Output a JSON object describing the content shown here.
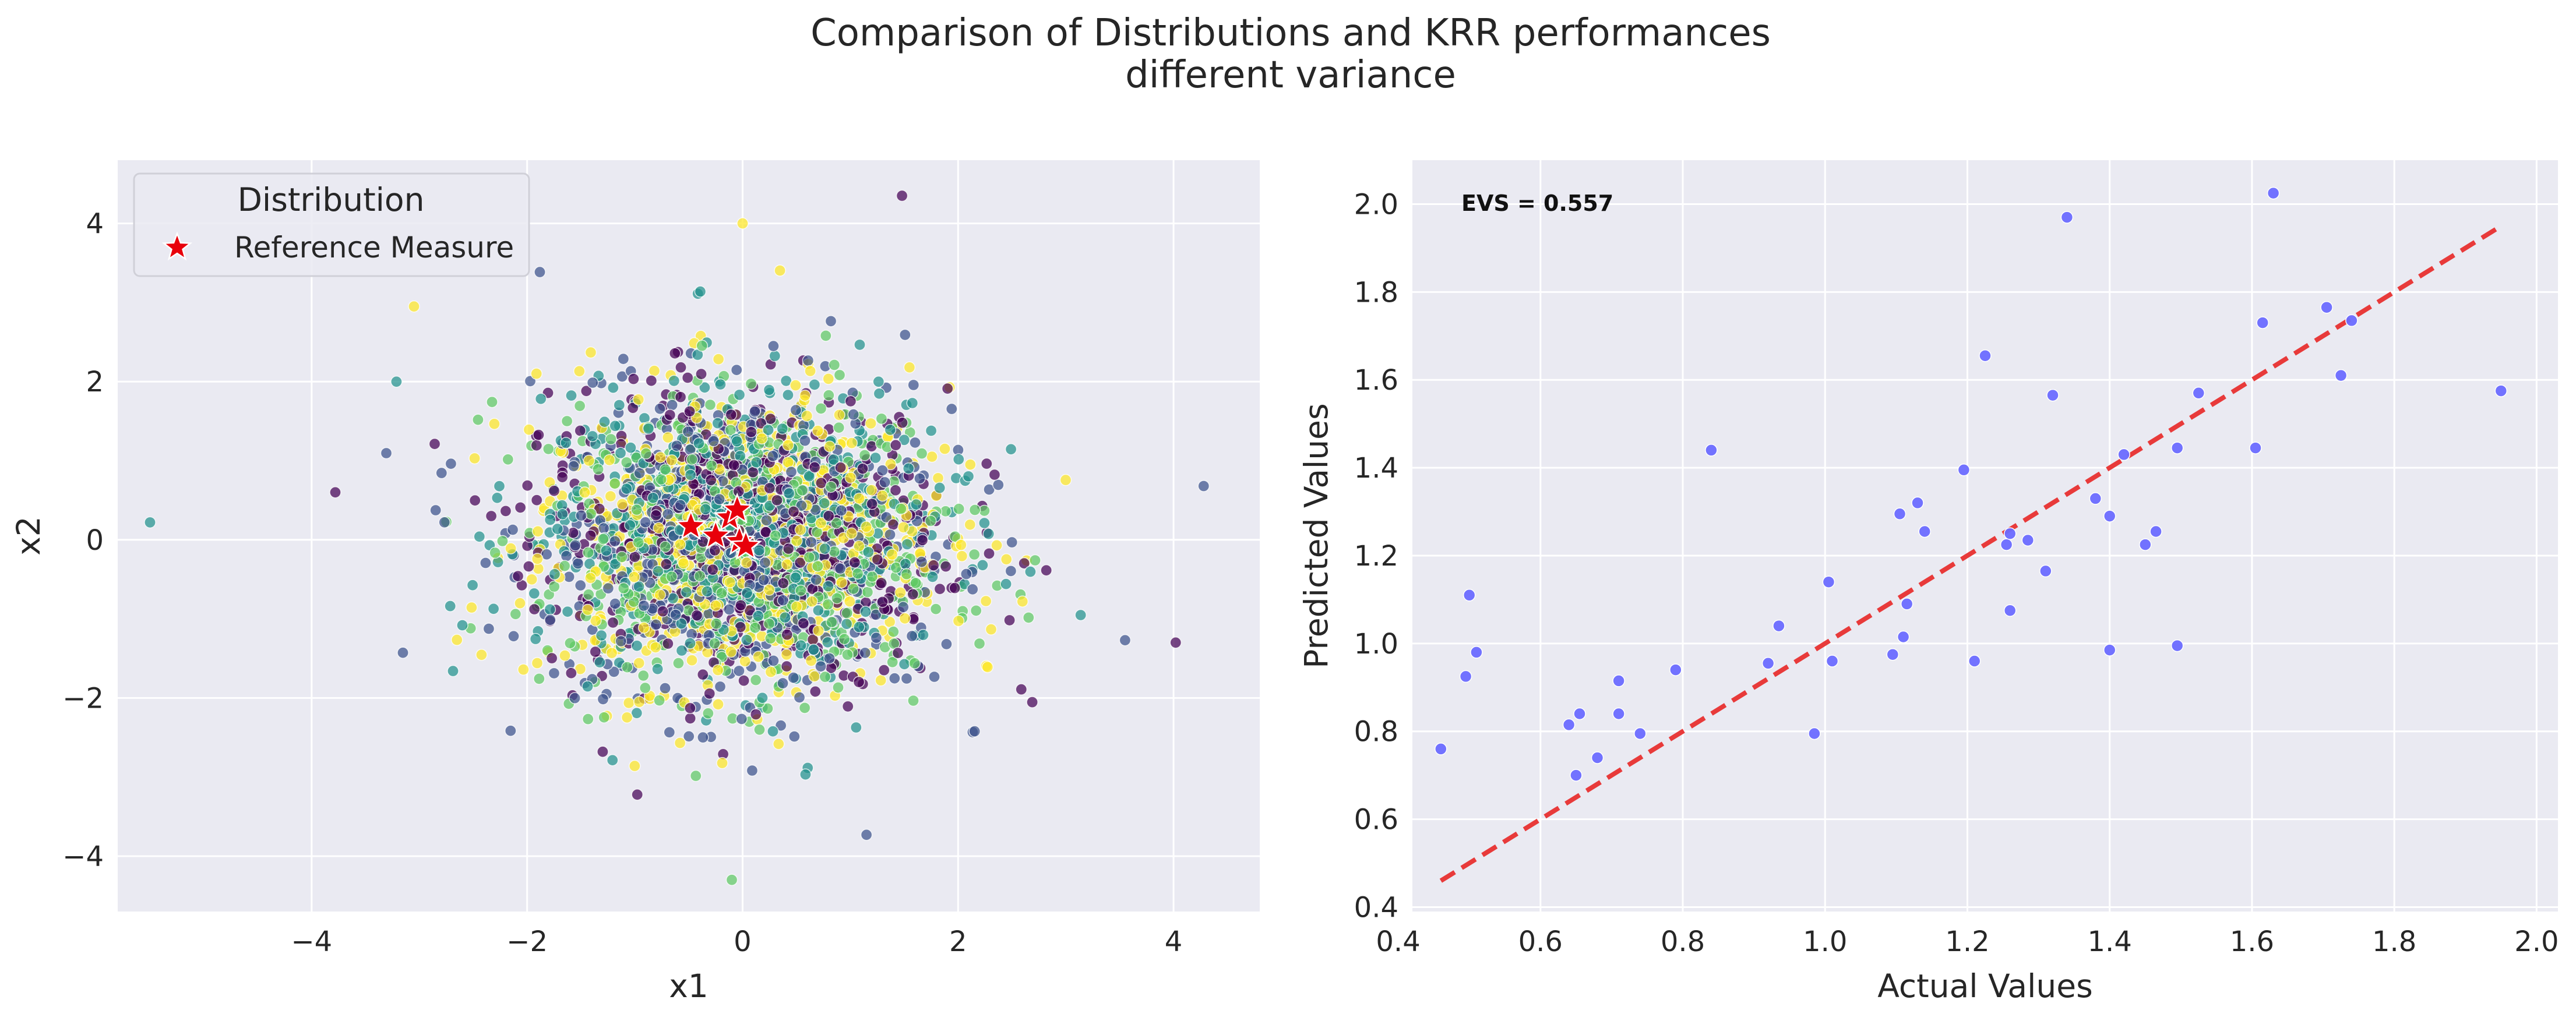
{
  "figure": {
    "title_line1": "Comparison of Distributions and KRR performances",
    "title_line2": "different variance"
  },
  "chart_data": [
    {
      "type": "scatter",
      "xlabel": "x1",
      "ylabel": "x2",
      "xlim": [
        -5.8,
        4.8
      ],
      "ylim": [
        -4.7,
        4.8
      ],
      "xticks": [
        -4,
        -2,
        0,
        2,
        4
      ],
      "yticks": [
        -4,
        -2,
        0,
        2,
        4
      ],
      "xtick_labels": [
        "−4",
        "−2",
        "0",
        "2",
        "4"
      ],
      "ytick_labels": [
        "−4",
        "−2",
        "0",
        "2",
        "4"
      ],
      "grid": true,
      "legend": {
        "title": "Distribution",
        "placement": "top-left",
        "entries": [
          {
            "label": "Reference Measure",
            "marker": "star",
            "color": "#e8000b"
          }
        ]
      },
      "reference_points": {
        "name": "Reference Measure",
        "points": [
          [
            -0.48,
            0.17
          ],
          [
            -0.25,
            0.05
          ],
          [
            -0.12,
            0.28
          ],
          [
            -0.05,
            0.38
          ],
          [
            -0.03,
            -0.02
          ],
          [
            0.03,
            -0.08
          ]
        ]
      },
      "cloud": {
        "description_count": 3000,
        "mean": [
          0.0,
          0.0
        ],
        "std": [
          1.0,
          1.0
        ],
        "palette": [
          "#440154",
          "#3b528b",
          "#21918c",
          "#5ec962",
          "#fde725"
        ],
        "notable_points": [
          [
            -5.5,
            0.22
          ],
          [
            4.28,
            0.68
          ],
          [
            4.02,
            -1.3
          ],
          [
            -3.78,
            0.6
          ],
          [
            1.48,
            4.35
          ],
          [
            0.0,
            4.0
          ],
          [
            -0.1,
            -4.3
          ],
          [
            1.15,
            -3.73
          ],
          [
            -3.05,
            2.95
          ],
          [
            3.55,
            -1.27
          ]
        ]
      }
    },
    {
      "type": "scatter",
      "xlabel": "Actual Values",
      "ylabel": "Predicted Values",
      "xlim": [
        0.42,
        2.03
      ],
      "ylim": [
        0.39,
        2.1
      ],
      "xticks": [
        0.4,
        0.6,
        0.8,
        1.0,
        1.2,
        1.4,
        1.6,
        1.8,
        2.0
      ],
      "yticks": [
        0.4,
        0.6,
        0.8,
        1.0,
        1.2,
        1.4,
        1.6,
        1.8,
        2.0
      ],
      "xtick_labels": [
        "0.4",
        "0.6",
        "0.8",
        "1.0",
        "1.2",
        "1.4",
        "1.6",
        "1.8",
        "2.0"
      ],
      "ytick_labels": [
        "0.4",
        "0.6",
        "0.8",
        "1.0",
        "1.2",
        "1.4",
        "1.6",
        "1.8",
        "2.0"
      ],
      "grid": true,
      "annotation": "EVS = 0.557",
      "point_color": "#6b6bff",
      "line_color": "#e83a3a",
      "identity_line": [
        [
          0.46,
          0.46
        ],
        [
          1.95,
          1.95
        ]
      ],
      "points": [
        [
          0.46,
          0.76
        ],
        [
          0.495,
          0.925
        ],
        [
          0.5,
          1.11
        ],
        [
          0.51,
          0.98
        ],
        [
          0.64,
          0.815
        ],
        [
          0.65,
          0.7
        ],
        [
          0.655,
          0.84
        ],
        [
          0.68,
          0.74
        ],
        [
          0.71,
          0.915
        ],
        [
          0.71,
          0.84
        ],
        [
          0.74,
          0.795
        ],
        [
          0.79,
          0.94
        ],
        [
          0.84,
          1.44
        ],
        [
          0.92,
          0.955
        ],
        [
          0.935,
          1.04
        ],
        [
          0.985,
          0.795
        ],
        [
          1.005,
          1.14
        ],
        [
          1.01,
          0.96
        ],
        [
          1.095,
          0.975
        ],
        [
          1.105,
          1.295
        ],
        [
          1.11,
          1.015
        ],
        [
          1.115,
          1.09
        ],
        [
          1.13,
          1.32
        ],
        [
          1.14,
          1.255
        ],
        [
          1.195,
          1.395
        ],
        [
          1.21,
          0.96
        ],
        [
          1.225,
          1.655
        ],
        [
          1.255,
          1.225
        ],
        [
          1.26,
          1.25
        ],
        [
          1.26,
          1.075
        ],
        [
          1.285,
          1.235
        ],
        [
          1.31,
          1.165
        ],
        [
          1.32,
          1.565
        ],
        [
          1.34,
          1.97
        ],
        [
          1.38,
          1.33
        ],
        [
          1.4,
          0.985
        ],
        [
          1.4,
          1.29
        ],
        [
          1.42,
          1.43
        ],
        [
          1.45,
          1.225
        ],
        [
          1.465,
          1.255
        ],
        [
          1.495,
          0.995
        ],
        [
          1.495,
          1.445
        ],
        [
          1.525,
          1.57
        ],
        [
          1.605,
          1.445
        ],
        [
          1.615,
          1.73
        ],
        [
          1.63,
          2.025
        ],
        [
          1.705,
          1.765
        ],
        [
          1.725,
          1.61
        ],
        [
          1.74,
          1.735
        ],
        [
          1.95,
          1.575
        ]
      ]
    }
  ]
}
